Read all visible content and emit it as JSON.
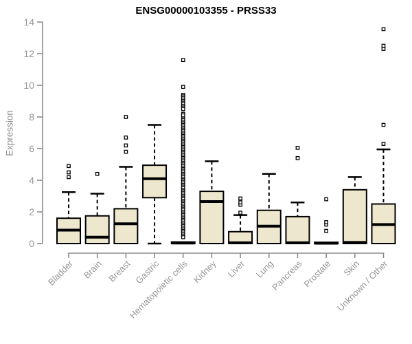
{
  "chart_data": {
    "type": "boxplot",
    "title": "ENSG00000103355 - PRSS33",
    "ylabel": "Expression",
    "xlabel": "",
    "ylim": [
      0,
      14
    ],
    "yticks": [
      0,
      2,
      4,
      6,
      8,
      10,
      12,
      14
    ],
    "grid": false,
    "legend": "none",
    "box_fill": "#ece7cd",
    "box_stroke": "#000000",
    "axis_color": "#8c8c8c",
    "tick_label_color": "#979797",
    "title_color": "#000000",
    "categories": [
      "Bladder",
      "Brain",
      "Breast",
      "Gastric",
      "Hematopoietic cells",
      "Kidney",
      "Liver",
      "Lung",
      "Pancreas",
      "Prostate",
      "Skin",
      "Unknown / Other"
    ],
    "series": [
      {
        "category": "Bladder",
        "whisker_low": 0,
        "q1": 0,
        "median": 0.85,
        "q3": 1.6,
        "whisker_high": 3.25,
        "outliers": [
          4.2,
          4.5,
          4.9
        ]
      },
      {
        "category": "Brain",
        "whisker_low": 0,
        "q1": 0,
        "median": 0.4,
        "q3": 1.75,
        "whisker_high": 3.15,
        "outliers": [
          4.4
        ]
      },
      {
        "category": "Breast",
        "whisker_low": 0,
        "q1": 0,
        "median": 1.25,
        "q3": 2.2,
        "whisker_high": 4.85,
        "outliers": [
          5.8,
          6.2,
          6.7,
          8.0
        ]
      },
      {
        "category": "Gastric",
        "whisker_low": 0,
        "q1": 2.9,
        "median": 4.1,
        "q3": 4.95,
        "whisker_high": 7.5,
        "outliers": []
      },
      {
        "category": "Hematopoietic cells",
        "whisker_low": 0,
        "q1": 0,
        "median": 0.03,
        "q3": 0.1,
        "whisker_high": 0.1,
        "outliers": [
          11.6,
          9.9,
          9.4,
          9.3,
          9.2,
          9.1,
          9.0,
          8.9,
          8.8,
          8.7,
          8.6,
          8.5,
          8.2,
          8.1,
          7.9,
          7.8,
          7.7,
          7.6,
          7.5,
          7.4,
          7.3,
          7.2,
          7.1,
          7.0,
          6.9,
          6.8,
          6.7,
          6.6,
          6.5,
          6.4,
          6.3,
          6.2,
          6.1,
          6.0,
          5.9,
          5.8,
          5.7,
          5.6,
          5.5,
          5.4,
          5.3,
          5.2,
          5.1,
          5.0,
          4.9,
          4.8,
          4.7,
          4.6,
          4.5,
          4.4,
          4.3,
          4.2,
          4.1,
          4.0,
          3.9,
          3.8,
          3.7,
          3.6,
          3.5,
          3.4,
          3.3,
          3.2,
          3.1,
          3.0,
          2.9,
          2.8,
          2.7,
          2.6,
          2.5,
          2.4,
          2.3,
          2.2,
          2.1,
          2.0,
          1.9,
          1.8,
          1.7,
          1.6,
          1.5,
          1.4,
          1.3,
          1.2,
          1.1,
          1.0,
          0.9,
          0.8,
          0.7,
          0.6,
          0.5,
          0.4
        ]
      },
      {
        "category": "Kidney",
        "whisker_low": 0,
        "q1": 0,
        "median": 2.65,
        "q3": 3.3,
        "whisker_high": 5.2,
        "outliers": []
      },
      {
        "category": "Liver",
        "whisker_low": 0,
        "q1": 0,
        "median": 0.05,
        "q3": 0.75,
        "whisker_high": 1.8,
        "outliers": [
          1.95,
          2.45,
          2.6,
          2.85
        ]
      },
      {
        "category": "Lung",
        "whisker_low": 0,
        "q1": 0,
        "median": 1.1,
        "q3": 2.1,
        "whisker_high": 4.4,
        "outliers": []
      },
      {
        "category": "Pancreas",
        "whisker_low": 0,
        "q1": 0,
        "median": 0.05,
        "q3": 1.7,
        "whisker_high": 2.6,
        "outliers": [
          5.4,
          6.05
        ]
      },
      {
        "category": "Prostate",
        "whisker_low": 0,
        "q1": 0,
        "median": 0.02,
        "q3": 0.08,
        "whisker_high": 0.08,
        "outliers": [
          0.8,
          1.2,
          1.35,
          2.8
        ]
      },
      {
        "category": "Skin",
        "whisker_low": 0,
        "q1": 0,
        "median": 0.07,
        "q3": 3.4,
        "whisker_high": 4.2,
        "outliers": []
      },
      {
        "category": "Unknown / Other",
        "whisker_low": 0,
        "q1": 0,
        "median": 1.2,
        "q3": 2.5,
        "whisker_high": 5.95,
        "outliers": [
          6.3,
          7.5,
          12.3,
          12.5,
          13.55
        ]
      }
    ]
  }
}
